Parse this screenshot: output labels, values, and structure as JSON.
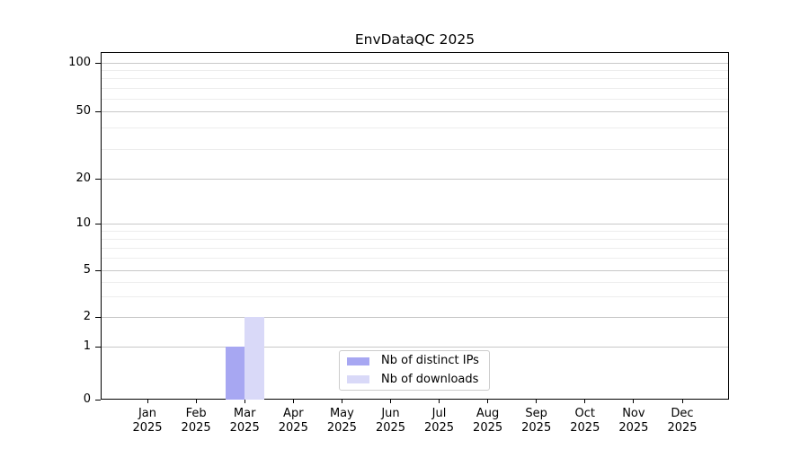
{
  "chart_data": {
    "type": "bar",
    "title": "EnvDataQC 2025",
    "categories": [
      {
        "line1": "Jan",
        "line2": "2025"
      },
      {
        "line1": "Feb",
        "line2": "2025"
      },
      {
        "line1": "Mar",
        "line2": "2025"
      },
      {
        "line1": "Apr",
        "line2": "2025"
      },
      {
        "line1": "May",
        "line2": "2025"
      },
      {
        "line1": "Jun",
        "line2": "2025"
      },
      {
        "line1": "Jul",
        "line2": "2025"
      },
      {
        "line1": "Aug",
        "line2": "2025"
      },
      {
        "line1": "Sep",
        "line2": "2025"
      },
      {
        "line1": "Oct",
        "line2": "2025"
      },
      {
        "line1": "Nov",
        "line2": "2025"
      },
      {
        "line1": "Dec",
        "line2": "2025"
      }
    ],
    "series": [
      {
        "name": "Nb of distinct IPs",
        "color": "#a7a7f2",
        "values": [
          0,
          0,
          1,
          0,
          0,
          0,
          0,
          0,
          0,
          0,
          0,
          0
        ]
      },
      {
        "name": "Nb of downloads",
        "color": "#d9d9f8",
        "values": [
          0,
          0,
          2,
          0,
          0,
          0,
          0,
          0,
          0,
          0,
          0,
          0
        ]
      }
    ],
    "yaxis": {
      "scale": "symlog",
      "major_ticks": [
        0,
        1,
        2,
        5,
        10,
        20,
        50,
        100
      ],
      "minor_ticks": [
        3,
        4,
        6,
        7,
        8,
        9,
        30,
        40,
        60,
        70,
        80,
        90
      ],
      "ylim": [
        0,
        120
      ]
    },
    "xlabel": "",
    "ylabel": "",
    "grid": {
      "major_color": "#c8c8c8",
      "minor_color": "#ededed"
    },
    "legend": {
      "position": "lower center inside axes"
    },
    "colors": {
      "spine": "#000000",
      "text": "#000000",
      "background": "#ffffff"
    }
  }
}
